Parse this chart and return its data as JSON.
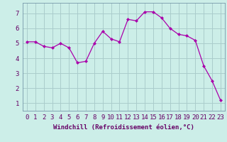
{
  "x": [
    0,
    1,
    2,
    3,
    4,
    5,
    6,
    7,
    8,
    9,
    10,
    11,
    12,
    13,
    14,
    15,
    16,
    17,
    18,
    19,
    20,
    21,
    22,
    23
  ],
  "y": [
    5.1,
    5.1,
    4.8,
    4.7,
    5.0,
    4.7,
    3.7,
    3.8,
    5.0,
    5.8,
    5.3,
    5.1,
    6.6,
    6.5,
    7.1,
    7.1,
    6.7,
    6.0,
    5.6,
    5.5,
    5.2,
    3.5,
    2.5,
    1.2
  ],
  "line_color": "#aa00aa",
  "marker": "D",
  "marker_size": 2.0,
  "bg_color": "#cceee8",
  "grid_color": "#aacccc",
  "xlabel": "Windchill (Refroidissement éolien,°C)",
  "xlim": [
    -0.5,
    23.5
  ],
  "ylim": [
    0.5,
    7.7
  ],
  "xtick_labels": [
    "0",
    "1",
    "2",
    "3",
    "4",
    "5",
    "6",
    "7",
    "8",
    "9",
    "10",
    "11",
    "12",
    "13",
    "14",
    "15",
    "16",
    "17",
    "18",
    "19",
    "20",
    "21",
    "22",
    "23"
  ],
  "ytick_values": [
    1,
    2,
    3,
    4,
    5,
    6,
    7
  ],
  "xlabel_fontsize": 6.5,
  "tick_fontsize": 6.5,
  "label_color": "#660066"
}
